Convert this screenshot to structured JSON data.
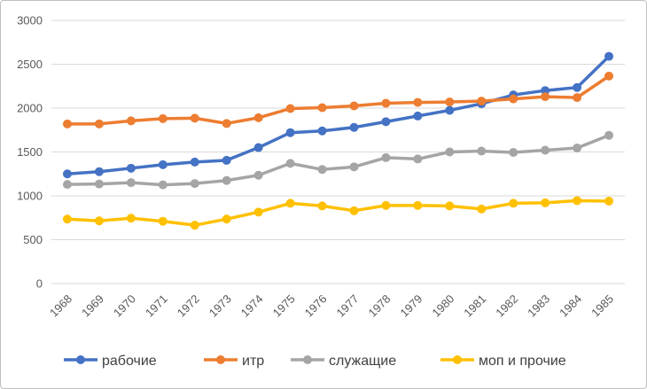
{
  "chart_data": {
    "type": "line",
    "categories": [
      "1968",
      "1969",
      "1970",
      "1971",
      "1972",
      "1973",
      "1974",
      "1975",
      "1976",
      "1977",
      "1978",
      "1979",
      "1980",
      "1981",
      "1982",
      "1983",
      "1984",
      "1985"
    ],
    "ylim": [
      0,
      3000
    ],
    "yticks": [
      0,
      500,
      1000,
      1500,
      2000,
      2500,
      3000
    ],
    "grid": true,
    "legend_position": "bottom",
    "series": [
      {
        "name": "рабочие",
        "color": "#4472C4",
        "values": [
          1250,
          1275,
          1315,
          1355,
          1385,
          1405,
          1550,
          1720,
          1740,
          1780,
          1845,
          1910,
          1975,
          2050,
          2150,
          2200,
          2235,
          2590
        ]
      },
      {
        "name": "итр",
        "color": "#ED7D31",
        "values": [
          1820,
          1820,
          1855,
          1880,
          1885,
          1825,
          1890,
          1995,
          2005,
          2025,
          2055,
          2065,
          2070,
          2080,
          2105,
          2130,
          2120,
          2365
        ]
      },
      {
        "name": "служащие",
        "color": "#A5A5A5",
        "values": [
          1130,
          1135,
          1150,
          1125,
          1140,
          1175,
          1235,
          1370,
          1300,
          1330,
          1435,
          1420,
          1500,
          1510,
          1495,
          1520,
          1545,
          1690
        ]
      },
      {
        "name": "моп и прочие",
        "color": "#FFC000",
        "values": [
          735,
          715,
          745,
          710,
          665,
          735,
          815,
          915,
          885,
          830,
          890,
          890,
          885,
          850,
          915,
          920,
          945,
          940
        ]
      }
    ]
  }
}
